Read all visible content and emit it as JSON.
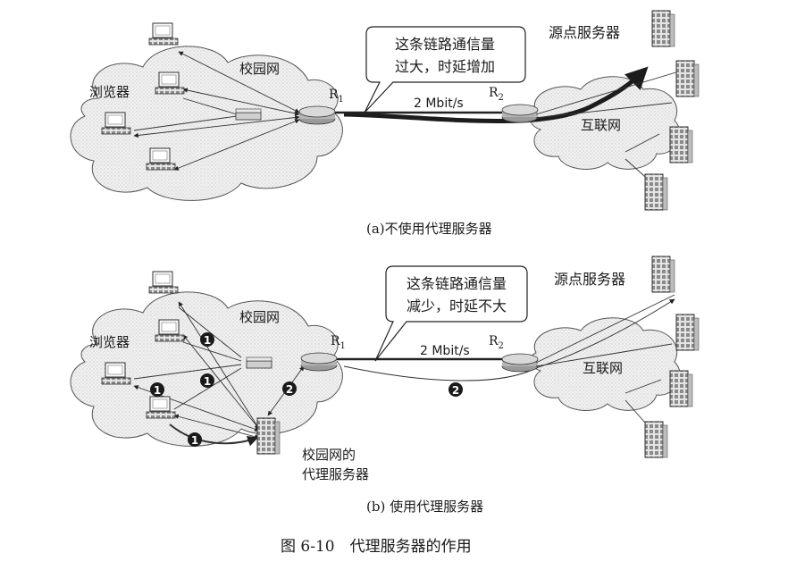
{
  "panel_a": {
    "callout": [
      "这条链路通信量",
      "过大，时延增加"
    ],
    "origin_server": "源点服务器",
    "campus_net": "校园网",
    "browser": "浏览器",
    "r1": "R",
    "r1_sub": "1",
    "r2": "R",
    "r2_sub": "2",
    "link_rate": "2 Mbit/s",
    "internet": "互联网",
    "caption": "(a)不使用代理服务器"
  },
  "panel_b": {
    "callout": [
      "这条链路通信量",
      "减少，时延不大"
    ],
    "origin_server": "源点服务器",
    "campus_net": "校园网",
    "browser": "浏览器",
    "r1": "R",
    "r1_sub": "1",
    "r2": "R",
    "r2_sub": "2",
    "link_rate": "2 Mbit/s",
    "internet": "互联网",
    "proxy": [
      "校园网的",
      "代理服务器"
    ],
    "step1": "1",
    "step2": "2",
    "caption": "(b) 使用代理服务器"
  },
  "figure_caption": "图 6-10　代理服务器的作用"
}
